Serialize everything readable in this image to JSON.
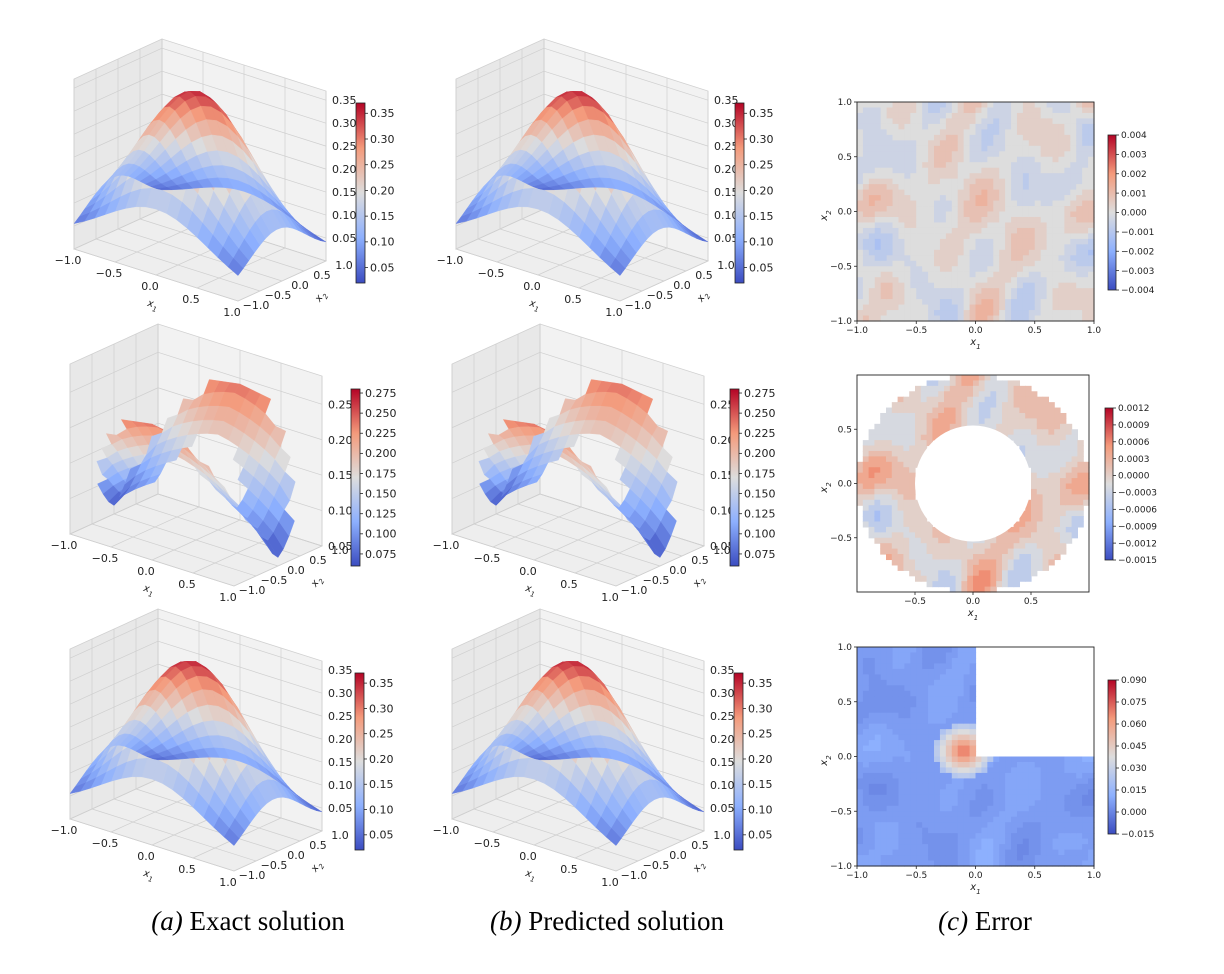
{
  "captions": {
    "a_prefix": "(a)",
    "a_text": "Exact solution",
    "b_prefix": "(b)",
    "b_text": "Predicted solution",
    "c_prefix": "(c)",
    "c_text": "Error"
  },
  "colors": {
    "low": "#3b4cc0",
    "mid": "#dddddd",
    "high": "#b40426"
  },
  "chart_data": [
    {
      "id": "a1",
      "type": "surface3d",
      "domain": "square",
      "xlabel": "x1",
      "ylabel": "x2",
      "x_ticks": [
        "−1.0",
        "−0.5",
        "0.0",
        "0.5",
        "1.0"
      ],
      "y_ticks": [
        "−1.0",
        "−0.5",
        "0.0",
        "0.5",
        "1.0"
      ],
      "z_ticks": [
        "0.05",
        "0.10",
        "0.15",
        "0.20",
        "0.25",
        "0.30",
        "0.35"
      ],
      "zlim": [
        0.0,
        0.37
      ],
      "peak": 0.36,
      "colorbar_ticks": [
        "0.05",
        "0.10",
        "0.15",
        "0.20",
        "0.25",
        "0.30",
        "0.35"
      ],
      "colorbar_range": [
        0.02,
        0.37
      ]
    },
    {
      "id": "b1",
      "type": "surface3d",
      "domain": "square",
      "xlabel": "x1",
      "ylabel": "x2",
      "x_ticks": [
        "−1.0",
        "−0.5",
        "0.0",
        "0.5",
        "1.0"
      ],
      "y_ticks": [
        "−1.0",
        "−0.5",
        "0.0",
        "0.5",
        "1.0"
      ],
      "z_ticks": [
        "0.05",
        "0.10",
        "0.15",
        "0.20",
        "0.25",
        "0.30",
        "0.35"
      ],
      "zlim": [
        0.0,
        0.37
      ],
      "peak": 0.36,
      "colorbar_ticks": [
        "0.05",
        "0.10",
        "0.15",
        "0.20",
        "0.25",
        "0.30",
        "0.35"
      ],
      "colorbar_range": [
        0.02,
        0.37
      ]
    },
    {
      "id": "c1",
      "type": "contour",
      "domain": "square",
      "xlabel": "x1",
      "ylabel": "x2",
      "x_ticks": [
        "−1.0",
        "−0.5",
        "0.0",
        "0.5",
        "1.0"
      ],
      "y_ticks": [
        "−1.0",
        "−0.5",
        "0.0",
        "0.5",
        "1.0"
      ],
      "xlim": [
        -1,
        1
      ],
      "ylim": [
        -1,
        1
      ],
      "colorbar_ticks": [
        "0.004",
        "0.003",
        "0.002",
        "0.001",
        "0.000",
        "−0.001",
        "−0.002",
        "−0.003",
        "−0.004"
      ],
      "colorbar_range": [
        -0.004,
        0.004
      ]
    },
    {
      "id": "a2",
      "type": "surface3d",
      "domain": "annulus",
      "xlabel": "x1",
      "ylabel": "x2",
      "x_ticks": [
        "−1.0",
        "−0.5",
        "0.0",
        "0.5",
        "1.0"
      ],
      "y_ticks": [
        "−1.0",
        "−0.5",
        "0.0",
        "0.5",
        "1.0"
      ],
      "z_ticks": [
        "0.05",
        "0.10",
        "0.15",
        "0.20",
        "0.25"
      ],
      "zlim": [
        0.05,
        0.29
      ],
      "peak": 0.28,
      "colorbar_ticks": [
        "0.275",
        "0.250",
        "0.225",
        "0.200",
        "0.175",
        "0.150",
        "0.125",
        "0.100",
        "0.075"
      ],
      "colorbar_range": [
        0.06,
        0.28
      ]
    },
    {
      "id": "b2",
      "type": "surface3d",
      "domain": "annulus",
      "xlabel": "x1",
      "ylabel": "x2",
      "x_ticks": [
        "−1.0",
        "−0.5",
        "0.0",
        "0.5",
        "1.0"
      ],
      "y_ticks": [
        "−1.0",
        "−0.5",
        "0.0",
        "0.5",
        "1.0"
      ],
      "z_ticks": [
        "0.05",
        "0.10",
        "0.15",
        "0.20",
        "0.25"
      ],
      "zlim": [
        0.05,
        0.29
      ],
      "peak": 0.28,
      "colorbar_ticks": [
        "0.275",
        "0.250",
        "0.225",
        "0.200",
        "0.175",
        "0.150",
        "0.125",
        "0.100",
        "0.075"
      ],
      "colorbar_range": [
        0.06,
        0.28
      ]
    },
    {
      "id": "c2",
      "type": "contour",
      "domain": "annulus",
      "xlabel": "x1",
      "ylabel": "x2",
      "x_ticks": [
        "−0.5",
        "0.0",
        "0.5"
      ],
      "y_ticks": [
        "−0.5",
        "0.0",
        "0.5"
      ],
      "xlim": [
        -1,
        1
      ],
      "ylim": [
        -1,
        1
      ],
      "inner_radius": 0.5,
      "colorbar_ticks": [
        "0.0012",
        "0.0009",
        "0.0006",
        "0.0003",
        "0.0000",
        "−0.0003",
        "−0.0006",
        "−0.0009",
        "−0.0012",
        "−0.0015"
      ],
      "colorbar_range": [
        -0.0015,
        0.0012
      ]
    },
    {
      "id": "a3",
      "type": "surface3d",
      "domain": "L-shape",
      "xlabel": "x1",
      "ylabel": "x2",
      "x_ticks": [
        "−1.0",
        "−0.5",
        "0.0",
        "0.5",
        "1.0"
      ],
      "y_ticks": [
        "−1.0",
        "−0.5",
        "0.0",
        "0.5",
        "1.0"
      ],
      "z_ticks": [
        "0.05",
        "0.10",
        "0.15",
        "0.20",
        "0.25",
        "0.30",
        "0.35"
      ],
      "zlim": [
        0.0,
        0.37
      ],
      "peak": 0.36,
      "colorbar_ticks": [
        "0.05",
        "0.10",
        "0.15",
        "0.20",
        "0.25",
        "0.30",
        "0.35"
      ],
      "colorbar_range": [
        0.02,
        0.37
      ]
    },
    {
      "id": "b3",
      "type": "surface3d",
      "domain": "L-shape",
      "xlabel": "x1",
      "ylabel": "x2",
      "x_ticks": [
        "−1.0",
        "−0.5",
        "0.0",
        "0.5",
        "1.0"
      ],
      "y_ticks": [
        "−1.0",
        "−0.5",
        "0.0",
        "0.5",
        "1.0"
      ],
      "z_ticks": [
        "0.05",
        "0.10",
        "0.15",
        "0.20",
        "0.25",
        "0.30",
        "0.35"
      ],
      "zlim": [
        0.0,
        0.37
      ],
      "peak": 0.36,
      "colorbar_ticks": [
        "0.05",
        "0.10",
        "0.15",
        "0.20",
        "0.25",
        "0.30",
        "0.35"
      ],
      "colorbar_range": [
        0.02,
        0.37
      ]
    },
    {
      "id": "c3",
      "type": "contour",
      "domain": "L-shape",
      "xlabel": "x1",
      "ylabel": "x2",
      "x_ticks": [
        "−1.0",
        "−0.5",
        "0.0",
        "0.5",
        "1.0"
      ],
      "y_ticks": [
        "−1.0",
        "−0.5",
        "0.0",
        "0.5",
        "1.0"
      ],
      "xlim": [
        -1,
        1
      ],
      "ylim": [
        -1,
        1
      ],
      "colorbar_ticks": [
        "0.090",
        "0.075",
        "0.060",
        "0.045",
        "0.030",
        "0.015",
        "0.000",
        "−0.015"
      ],
      "colorbar_range": [
        -0.015,
        0.09
      ]
    }
  ]
}
